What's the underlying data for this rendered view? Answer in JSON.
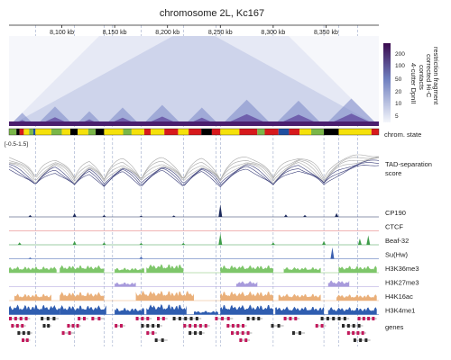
{
  "title": "chromosome 2L, Kc167",
  "axis": {
    "unit": "kb",
    "start_kb": 8050,
    "end_kb": 8400,
    "ticks": [
      {
        "kb": 8100,
        "label": "8,100 kb"
      },
      {
        "kb": 8150,
        "label": "8,150 kb"
      },
      {
        "kb": 8200,
        "label": "8,200 kb"
      },
      {
        "kb": 8250,
        "label": "8,250 kb"
      },
      {
        "kb": 8300,
        "label": "8,300 kb"
      },
      {
        "kb": 8350,
        "label": "8,350 kb"
      }
    ]
  },
  "heatmap": {
    "colorbar_title": [
      "restriction fragment",
      "corrected Hi-C",
      "contacts"
    ],
    "colorbar_side_label": "4-cutter DpnII",
    "colorbar_ticks": [
      "200",
      "100",
      "50",
      "20",
      "10",
      "5"
    ],
    "colorbar_values": [
      200,
      100,
      50,
      20,
      10,
      5
    ],
    "colors": {
      "low": "#f4f6fb",
      "mid": "#6f7fbf",
      "high": "#3a0a4e"
    },
    "domains_kb": [
      [
        8050,
        8075
      ],
      [
        8075,
        8112
      ],
      [
        8112,
        8140
      ],
      [
        8140,
        8175
      ],
      [
        8175,
        8215
      ],
      [
        8215,
        8250
      ],
      [
        8250,
        8300
      ],
      [
        8300,
        8348
      ],
      [
        8348,
        8400
      ]
    ]
  },
  "chrom_state": {
    "label": "chrom. state",
    "segments": [
      {
        "start": 8050,
        "end": 8057,
        "color": "#7ab648"
      },
      {
        "start": 8057,
        "end": 8060,
        "color": "#000000"
      },
      {
        "start": 8060,
        "end": 8064,
        "color": "#d7191c"
      },
      {
        "start": 8064,
        "end": 8069,
        "color": "#f5e10a"
      },
      {
        "start": 8069,
        "end": 8073,
        "color": "#7ab648"
      },
      {
        "start": 8073,
        "end": 8075,
        "color": "#1f4fa0"
      },
      {
        "start": 8075,
        "end": 8090,
        "color": "#f5e10a"
      },
      {
        "start": 8090,
        "end": 8100,
        "color": "#7ab648"
      },
      {
        "start": 8100,
        "end": 8108,
        "color": "#f5e10a"
      },
      {
        "start": 8108,
        "end": 8115,
        "color": "#000000"
      },
      {
        "start": 8115,
        "end": 8125,
        "color": "#f5e10a"
      },
      {
        "start": 8125,
        "end": 8132,
        "color": "#7ab648"
      },
      {
        "start": 8132,
        "end": 8140,
        "color": "#000000"
      },
      {
        "start": 8140,
        "end": 8158,
        "color": "#f5e10a"
      },
      {
        "start": 8158,
        "end": 8166,
        "color": "#7ab648"
      },
      {
        "start": 8166,
        "end": 8178,
        "color": "#f5e10a"
      },
      {
        "start": 8178,
        "end": 8184,
        "color": "#d7191c"
      },
      {
        "start": 8184,
        "end": 8197,
        "color": "#f5e10a"
      },
      {
        "start": 8197,
        "end": 8210,
        "color": "#d7191c"
      },
      {
        "start": 8210,
        "end": 8220,
        "color": "#f5e10a"
      },
      {
        "start": 8220,
        "end": 8232,
        "color": "#d7191c"
      },
      {
        "start": 8232,
        "end": 8242,
        "color": "#000000"
      },
      {
        "start": 8242,
        "end": 8250,
        "color": "#d7191c"
      },
      {
        "start": 8250,
        "end": 8268,
        "color": "#f5e10a"
      },
      {
        "start": 8268,
        "end": 8285,
        "color": "#d7191c"
      },
      {
        "start": 8285,
        "end": 8292,
        "color": "#7ab648"
      },
      {
        "start": 8292,
        "end": 8305,
        "color": "#d7191c"
      },
      {
        "start": 8305,
        "end": 8315,
        "color": "#1f4fa0"
      },
      {
        "start": 8315,
        "end": 8325,
        "color": "#d7191c"
      },
      {
        "start": 8325,
        "end": 8336,
        "color": "#f5e10a"
      },
      {
        "start": 8336,
        "end": 8348,
        "color": "#7ab648"
      },
      {
        "start": 8348,
        "end": 8362,
        "color": "#000000"
      },
      {
        "start": 8362,
        "end": 8393,
        "color": "#f5e10a"
      },
      {
        "start": 8393,
        "end": 8400,
        "color": "#d7191c"
      }
    ]
  },
  "tad_score": {
    "label": [
      "TAD-separation",
      "score"
    ],
    "range_label": "[-0.5-1.5]",
    "range": [
      -0.5,
      1.5
    ],
    "color_light": "#a8a8a8",
    "color_dark": "#3b3f7a",
    "minima_kb": [
      8075,
      8112,
      8140,
      8175,
      8215,
      8250,
      8300,
      8348
    ]
  },
  "tracks": [
    {
      "label": "CP190",
      "color": "#1c2a5c",
      "peaks": [
        {
          "kb": 8250,
          "h": 1.0
        },
        {
          "kb": 8112,
          "h": 0.3
        },
        {
          "kb": 8070,
          "h": 0.15
        },
        {
          "kb": 8206,
          "h": 0.12
        },
        {
          "kb": 8312,
          "h": 0.2
        },
        {
          "kb": 8330,
          "h": 0.15
        },
        {
          "kb": 8360,
          "h": 0.3
        },
        {
          "kb": 8140,
          "h": 0.15
        },
        {
          "kb": 8175,
          "h": 0.1
        }
      ]
    },
    {
      "label": "CTCF",
      "color": "#e36a6a",
      "peaks": []
    },
    {
      "label": "Beaf-32",
      "color": "#3f9d4a",
      "peaks": [
        {
          "kb": 8250,
          "h": 0.9
        },
        {
          "kb": 8112,
          "h": 0.3
        },
        {
          "kb": 8060,
          "h": 0.2
        },
        {
          "kb": 8140,
          "h": 0.2
        },
        {
          "kb": 8175,
          "h": 0.15
        },
        {
          "kb": 8215,
          "h": 0.15
        },
        {
          "kb": 8300,
          "h": 0.2
        },
        {
          "kb": 8348,
          "h": 0.3
        },
        {
          "kb": 8390,
          "h": 0.75
        },
        {
          "kb": 8382,
          "h": 0.5
        }
      ]
    },
    {
      "label": "Su(Hw)",
      "color": "#3b5fb0",
      "peaks": [
        {
          "kb": 8356,
          "h": 0.9
        },
        {
          "kb": 8175,
          "h": 0.15
        },
        {
          "kb": 8070,
          "h": 0.1
        }
      ]
    },
    {
      "label": "H3K36me3",
      "color": "#7ec66a",
      "regions": [
        [
          8050,
          8095,
          0.5
        ],
        [
          8098,
          8140,
          0.6
        ],
        [
          8150,
          8178,
          0.4
        ],
        [
          8180,
          8215,
          0.7
        ],
        [
          8250,
          8300,
          0.6
        ],
        [
          8310,
          8345,
          0.45
        ],
        [
          8362,
          8398,
          0.55
        ]
      ]
    },
    {
      "label": "H3K27me3",
      "color": "#a89bdc",
      "regions": [
        [
          8150,
          8170,
          0.35
        ],
        [
          8265,
          8285,
          0.45
        ],
        [
          8352,
          8372,
          0.5
        ]
      ]
    },
    {
      "label": "H4K16ac",
      "color": "#eab07a",
      "regions": [
        [
          8055,
          8090,
          0.55
        ],
        [
          8098,
          8140,
          0.7
        ],
        [
          8170,
          8225,
          0.8
        ],
        [
          8250,
          8300,
          0.75
        ],
        [
          8305,
          8345,
          0.55
        ],
        [
          8360,
          8398,
          0.5
        ]
      ]
    },
    {
      "label": "H3K4me1",
      "color": "#2f5db0",
      "regions": [
        [
          8050,
          8098,
          0.8
        ],
        [
          8098,
          8142,
          0.75
        ],
        [
          8150,
          8178,
          0.55
        ],
        [
          8180,
          8218,
          0.85
        ],
        [
          8225,
          8248,
          0.3
        ],
        [
          8250,
          8300,
          0.8
        ],
        [
          8302,
          8348,
          0.65
        ],
        [
          8352,
          8398,
          0.6
        ]
      ]
    }
  ],
  "genes": {
    "label": "genes",
    "color": "#b23a8a",
    "colors_alt": "#2b2b2b",
    "rows": [
      [
        [
          8050,
          8070,
          "#c2185b"
        ],
        [
          8080,
          8097,
          "#2b2b2b"
        ],
        [
          8115,
          8125,
          "#c2185b"
        ],
        [
          8128,
          8140,
          "#c2185b"
        ],
        [
          8170,
          8185,
          "#c2185b"
        ],
        [
          8190,
          8200,
          "#c2185b"
        ],
        [
          8205,
          8232,
          "#2b2b2b"
        ],
        [
          8245,
          8262,
          "#c2185b"
        ],
        [
          8275,
          8290,
          "#2b2b2b"
        ],
        [
          8310,
          8325,
          "#c2185b"
        ],
        [
          8345,
          8372,
          "#2b2b2b"
        ],
        [
          8380,
          8398,
          "#c2185b"
        ]
      ],
      [
        [
          8052,
          8066,
          "#c2185b"
        ],
        [
          8082,
          8090,
          "#2b2b2b"
        ],
        [
          8105,
          8118,
          "#c2185b"
        ],
        [
          8150,
          8160,
          "#c2185b"
        ],
        [
          8175,
          8195,
          "#2b2b2b"
        ],
        [
          8215,
          8240,
          "#c2185b"
        ],
        [
          8256,
          8275,
          "#c2185b"
        ],
        [
          8298,
          8310,
          "#2b2b2b"
        ],
        [
          8340,
          8350,
          "#c2185b"
        ],
        [
          8365,
          8385,
          "#2b2b2b"
        ]
      ],
      [
        [
          8058,
          8072,
          "#2b2b2b"
        ],
        [
          8100,
          8112,
          "#c2185b"
        ],
        [
          8180,
          8190,
          "#c2185b"
        ],
        [
          8220,
          8235,
          "#2b2b2b"
        ],
        [
          8260,
          8280,
          "#c2185b"
        ],
        [
          8318,
          8330,
          "#2b2b2b"
        ],
        [
          8370,
          8388,
          "#c2185b"
        ]
      ],
      [
        [
          8062,
          8070,
          "#c2185b"
        ],
        [
          8188,
          8200,
          "#2b2b2b"
        ],
        [
          8268,
          8278,
          "#c2185b"
        ],
        [
          8376,
          8392,
          "#2b2b2b"
        ]
      ]
    ]
  },
  "boundaries_kb": [
    8075,
    8112,
    8140,
    8148,
    8175,
    8215,
    8246,
    8250,
    8300,
    8348,
    8362,
    8380
  ]
}
